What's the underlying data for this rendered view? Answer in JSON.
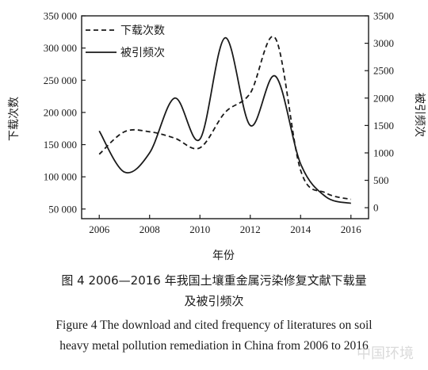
{
  "chart_data": {
    "type": "line",
    "x": [
      2006,
      2007,
      2008,
      2009,
      2010,
      2011,
      2012,
      2013,
      2014,
      2015,
      2016
    ],
    "xlabel": "年份",
    "ylabel_left": "下载次数",
    "ylabel_right": "被引频次",
    "x_ticks": [
      2006,
      2008,
      2010,
      2012,
      2014,
      2016
    ],
    "x_tick_labels": [
      "2006",
      "2008",
      "2010",
      "2012",
      "2014",
      "2016"
    ],
    "ylim_left": [
      35000,
      350000
    ],
    "y_ticks_left": [
      50000,
      100000,
      150000,
      200000,
      250000,
      300000,
      350000
    ],
    "y_tick_labels_left": [
      "50 000",
      "100 000",
      "150 000",
      "200 000",
      "250 000",
      "300 000",
      "350 000"
    ],
    "ylim_right": [
      -200,
      3500
    ],
    "y_ticks_right": [
      0,
      500,
      1000,
      1500,
      2000,
      2500,
      3000,
      3500
    ],
    "y_tick_labels_right": [
      "0",
      "500",
      "1000",
      "1500",
      "2000",
      "2500",
      "3000",
      "3500"
    ],
    "grid": false,
    "legend_position": "top-left",
    "series": [
      {
        "name": "下载次数",
        "axis": "left",
        "style": "dashed",
        "values": [
          135000,
          170000,
          170000,
          160000,
          145000,
          200000,
          230000,
          315000,
          110000,
          75000,
          65000
        ]
      },
      {
        "name": "被引频次",
        "axis": "right",
        "style": "solid",
        "values": [
          1400,
          650,
          1000,
          2000,
          1250,
          3100,
          1500,
          2400,
          800,
          200,
          80
        ]
      }
    ]
  },
  "caption": {
    "cn_line1": "图 4  2006—2016 年我国土壤重金属污染修复文献下载量",
    "cn_line2": "及被引频次",
    "en_line1": "Figure 4  The download and cited frequency of literatures on soil",
    "en_line2": "heavy metal pollution remediation in China from 2006 to 2016"
  },
  "watermark": "中国环境",
  "colors": {
    "line": "#1a1a1a",
    "axis": "#1a1a1a"
  }
}
